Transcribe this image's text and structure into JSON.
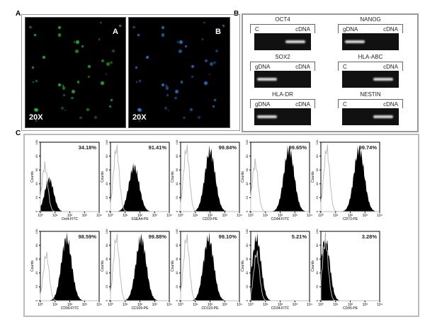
{
  "panel_labels": {
    "a": "A",
    "b": "B",
    "c": "C"
  },
  "panel_a": {
    "images": [
      {
        "tag": "A",
        "magnification": "20X",
        "stain_color": "#3fbf3f"
      },
      {
        "tag": "B",
        "magnification": "20X",
        "stain_color": "#3a7fd8"
      }
    ]
  },
  "panel_b": {
    "gels": [
      {
        "gene": "OCT4",
        "lanes": [
          "C",
          "cDNA"
        ],
        "band_in_lane": [
          false,
          true
        ]
      },
      {
        "gene": "NANOG",
        "lanes": [
          "gDNA",
          "cDNA"
        ],
        "band_in_lane": [
          true,
          false
        ]
      },
      {
        "gene": "SOX2",
        "lanes": [
          "gDNA",
          "cDNA"
        ],
        "band_in_lane": [
          true,
          false
        ]
      },
      {
        "gene": "HLA-ABC",
        "lanes": [
          "C",
          "cDNA"
        ],
        "band_in_lane": [
          false,
          true
        ]
      },
      {
        "gene": "HLA-DR",
        "lanes": [
          "gDNA",
          "cDNA"
        ],
        "band_in_lane": [
          true,
          false
        ]
      },
      {
        "gene": "NESTIN",
        "lanes": [
          "C",
          "cDNA"
        ],
        "band_in_lane": [
          false,
          true
        ]
      }
    ]
  },
  "chart_data": {
    "type": "histogram",
    "ylabel": "Counts",
    "y_ticks": [
      "0",
      "20",
      "40",
      "60",
      "80",
      "100"
    ],
    "x_ticks": [
      "10⁰",
      "10¹",
      "10²",
      "10³",
      "10⁴"
    ],
    "x_scale": "log",
    "ylim": [
      0,
      100
    ],
    "xlim": [
      1,
      10000
    ],
    "panels": [
      {
        "xlabel": "Oct4-FITC",
        "percent": "34.18%",
        "isotype_peak": 2,
        "isotype_height": 73,
        "sample_peak": 4,
        "sample_height": 52
      },
      {
        "xlabel": "SSEA4-PE",
        "percent": "91.41%",
        "isotype_peak": 2.5,
        "isotype_height": 100,
        "sample_peak": 40,
        "sample_height": 72
      },
      {
        "xlabel": "CD29-PE",
        "percent": "99.84%",
        "isotype_peak": 2.5,
        "isotype_height": 100,
        "sample_peak": 100,
        "sample_height": 97
      },
      {
        "xlabel": "CD44-FITC",
        "percent": "99.65%",
        "isotype_peak": 2,
        "isotype_height": 77,
        "sample_peak": 400,
        "sample_height": 100
      },
      {
        "xlabel": "CD73-PE",
        "percent": "99.74%",
        "isotype_peak": 2.5,
        "isotype_height": 100,
        "sample_peak": 400,
        "sample_height": 100
      },
      {
        "xlabel": "CD90-FITC",
        "percent": "98.59%",
        "isotype_peak": 2.5,
        "isotype_height": 73,
        "sample_peak": 60,
        "sample_height": 100
      },
      {
        "xlabel": "CD105-PE",
        "percent": "99.88%",
        "isotype_peak": 2.5,
        "isotype_height": 100,
        "sample_peak": 120,
        "sample_height": 100
      },
      {
        "xlabel": "CD133-PE",
        "percent": "99.10%",
        "isotype_peak": 2.5,
        "isotype_height": 100,
        "sample_peak": 80,
        "sample_height": 100
      },
      {
        "xlabel": "CD34-FITC",
        "percent": "5.21%",
        "isotype_peak": 2.5,
        "isotype_height": 75,
        "sample_peak": 2.5,
        "sample_height": 100
      },
      {
        "xlabel": "CD45-PE",
        "percent": "3.28%",
        "isotype_peak": 2,
        "isotype_height": 95,
        "sample_peak": 2,
        "sample_height": 100
      }
    ]
  }
}
